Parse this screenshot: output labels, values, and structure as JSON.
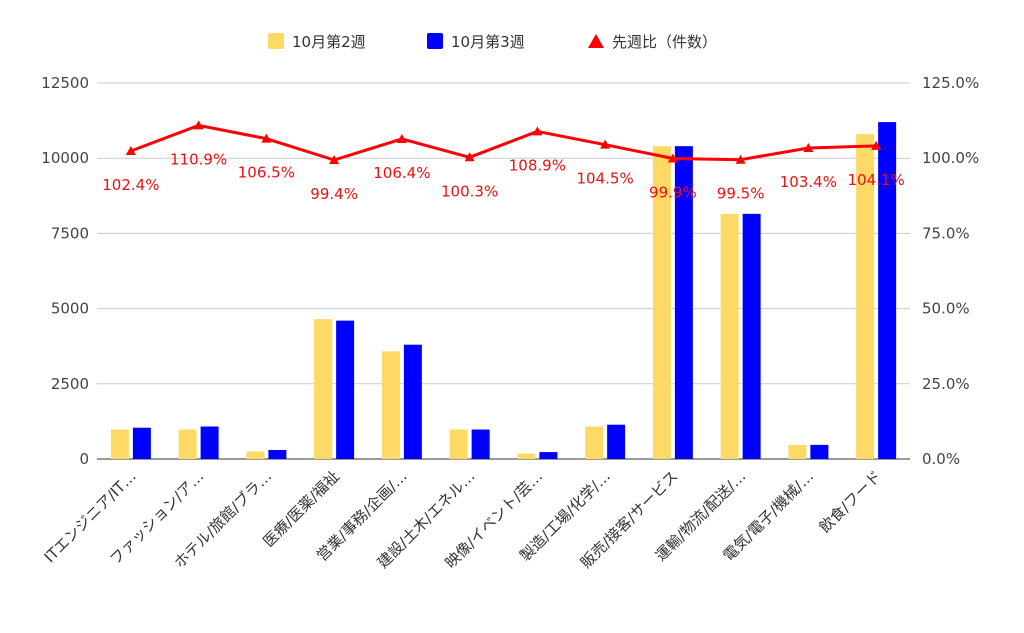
{
  "chart_data": {
    "type": "bar",
    "categories": [
      "ITエンジニア/IT…",
      "ファッション/ア…",
      "ホテル/旅館/ブラ…",
      "医療/医薬/福祉",
      "営業/事務/企画/…",
      "建設/土木/エネル…",
      "映像/イベント/芸…",
      "製造/工場/化学/…",
      "販売/接客/サービス",
      "運輸/物流/配送/…",
      "電気/電子/機械/…",
      "飲食/フード"
    ],
    "series": [
      {
        "name": "10月第2週",
        "type": "bar",
        "axis": "left",
        "color": "#ffd966",
        "values": [
          980,
          980,
          250,
          4650,
          3580,
          980,
          180,
          1080,
          10400,
          8150,
          470,
          10800
        ]
      },
      {
        "name": "10月第3週",
        "type": "bar",
        "axis": "left",
        "color": "#0000ff",
        "values": [
          1040,
          1080,
          300,
          4600,
          3800,
          980,
          230,
          1140,
          10400,
          8150,
          470,
          11200
        ]
      },
      {
        "name": "先週比（件数）",
        "type": "line",
        "axis": "right",
        "color": "#ff0000",
        "marker": "triangle",
        "values": [
          102.4,
          110.9,
          106.5,
          99.4,
          106.4,
          100.3,
          108.9,
          104.5,
          99.9,
          99.5,
          103.4,
          104.1
        ],
        "labels": [
          "102.4%",
          "110.9%",
          "106.5%",
          "99.4%",
          "106.4%",
          "100.3%",
          "108.9%",
          "104.5%",
          "99.9%",
          "99.5%",
          "103.4%",
          "104.1%"
        ]
      }
    ],
    "y_left": {
      "min": 0,
      "max": 12500,
      "ticks": [
        "0",
        "2500",
        "5000",
        "7500",
        "10000",
        "12500"
      ]
    },
    "y_right": {
      "min": 0,
      "max": 125,
      "ticks": [
        "0.0%",
        "25.0%",
        "50.0%",
        "75.0%",
        "100.0%",
        "125.0%"
      ]
    },
    "grid": true,
    "legend_position": "top"
  }
}
